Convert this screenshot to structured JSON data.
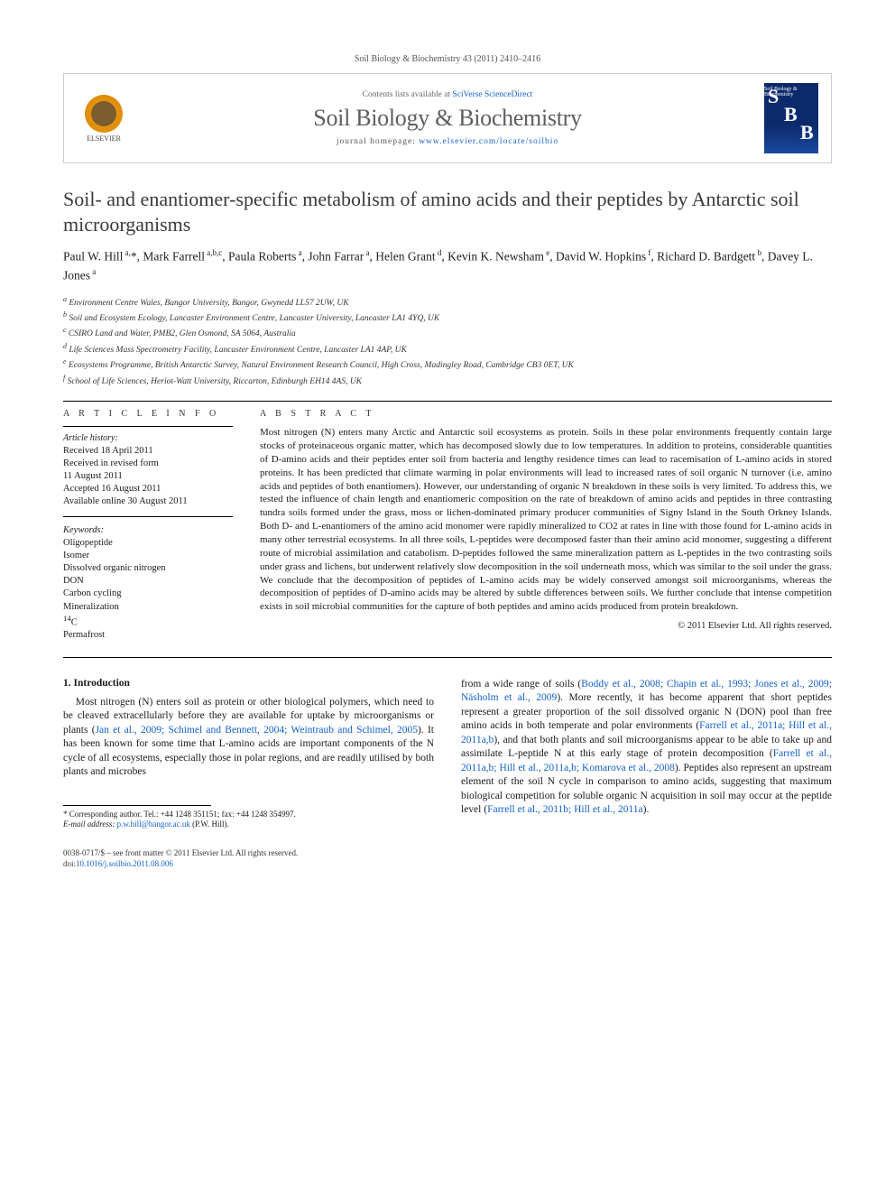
{
  "citation": "Soil Biology & Biochemistry 43 (2011) 2410–2416",
  "header": {
    "contents_prefix": "Contents lists available at ",
    "contents_link": "SciVerse ScienceDirect",
    "journal": "Soil Biology & Biochemistry",
    "homepage_prefix": "journal homepage: ",
    "homepage_url": "www.elsevier.com/locate/soilbio",
    "publisher": "ELSEVIER",
    "cover_small": "Soil Biology & Biochemistry"
  },
  "title": "Soil- and enantiomer-specific metabolism of amino acids and their peptides by Antarctic soil microorganisms",
  "authors_html": "Paul W. Hill<sup> a,</sup>*, Mark Farrell<sup> a,b,c</sup>, Paula Roberts<sup> a</sup>, John Farrar<sup> a</sup>, Helen Grant<sup> d</sup>, Kevin K. Newsham<sup> e</sup>, David W. Hopkins<sup> f</sup>, Richard D. Bardgett<sup> b</sup>, Davey L. Jones<sup> a</sup>",
  "affiliations": [
    "a Environment Centre Wales, Bangor University, Bangor, Gwynedd LL57 2UW, UK",
    "b Soil and Ecosystem Ecology, Lancaster Environment Centre, Lancaster University, Lancaster LA1 4YQ, UK",
    "c CSIRO Land and Water, PMB2, Glen Osmond, SA 5064, Australia",
    "d Life Sciences Mass Spectrometry Facility, Lancaster Environment Centre, Lancaster LA1 4AP, UK",
    "e Ecosystems Programme, British Antarctic Survey, Natural Environment Research Council, High Cross, Madingley Road, Cambridge CB3 0ET, UK",
    "f School of Life Sciences, Heriot-Watt University, Riccarton, Edinburgh EH14 4AS, UK"
  ],
  "article_info_heading": "A R T I C L E   I N F O",
  "abstract_heading": "A B S T R A C T",
  "history_label": "Article history:",
  "history": [
    "Received 18 April 2011",
    "Received in revised form",
    "11 August 2011",
    "Accepted 16 August 2011",
    "Available online 30 August 2011"
  ],
  "keywords_label": "Keywords:",
  "keywords": [
    "Oligopeptide",
    "Isomer",
    "Dissolved organic nitrogen",
    "DON",
    "Carbon cycling",
    "Mineralization",
    "14C",
    "Permafrost"
  ],
  "abstract": "Most nitrogen (N) enters many Arctic and Antarctic soil ecosystems as protein. Soils in these polar environments frequently contain large stocks of proteinaceous organic matter, which has decomposed slowly due to low temperatures. In addition to proteins, considerable quantities of D-amino acids and their peptides enter soil from bacteria and lengthy residence times can lead to racemisation of L-amino acids in stored proteins. It has been predicted that climate warming in polar environments will lead to increased rates of soil organic N turnover (i.e. amino acids and peptides of both enantiomers). However, our understanding of organic N breakdown in these soils is very limited. To address this, we tested the influence of chain length and enantiomeric composition on the rate of breakdown of amino acids and peptides in three contrasting tundra soils formed under the grass, moss or lichen-dominated primary producer communities of Signy Island in the South Orkney Islands. Both D- and L-enantiomers of the amino acid monomer were rapidly mineralized to CO2 at rates in line with those found for L-amino acids in many other terrestrial ecosystems. In all three soils, L-peptides were decomposed faster than their amino acid monomer, suggesting a different route of microbial assimilation and catabolism. D-peptides followed the same mineralization pattern as L-peptides in the two contrasting soils under grass and lichens, but underwent relatively slow decomposition in the soil underneath moss, which was similar to the soil under the grass. We conclude that the decomposition of peptides of L-amino acids may be widely conserved amongst soil microorganisms, whereas the decomposition of peptides of D-amino acids may be altered by subtle differences between soils. We further conclude that intense competition exists in soil microbial communities for the capture of both peptides and amino acids produced from protein breakdown.",
  "copyright": "© 2011 Elsevier Ltd. All rights reserved.",
  "intro_heading": "1. Introduction",
  "intro_col1": "Most nitrogen (N) enters soil as protein or other biological polymers, which need to be cleaved extracellularly before they are available for uptake by microorganisms or plants (<a href='#'>Jan et al., 2009; Schimel and Bennett, 2004; Weintraub and Schimel, 2005</a>). It has been known for some time that L-amino acids are important components of the N cycle of all ecosystems, especially those in polar regions, and are readily utilised by both plants and microbes",
  "intro_col2": "from a wide range of soils (<a href='#'>Boddy et al., 2008; Chapin et al., 1993; Jones et al., 2009; Näsholm et al., 2009</a>). More recently, it has become apparent that short peptides represent a greater proportion of the soil dissolved organic N (DON) pool than free amino acids in both temperate and polar environments (<a href='#'>Farrell et al., 2011a; Hill et al., 2011a,b</a>), and that both plants and soil microorganisms appear to be able to take up and assimilate L-peptide N at this early stage of protein decomposition (<a href='#'>Farrell et al., 2011a,b; Hill et al., 2011a,b; Komarova et al., 2008</a>). Peptides also represent an upstream element of the soil N cycle in comparison to amino acids, suggesting that maximum biological competition for soluble organic N acquisition in soil may occur at the peptide level (<a href='#'>Farrell et al., 2011b; Hill et al., 2011a</a>).",
  "footnote": {
    "corresponding": "* Corresponding author. Tel.: +44 1248 351151; fax: +44 1248 354997.",
    "email_label": "E-mail address: ",
    "email": "p.w.hill@bangor.ac.uk",
    "email_suffix": " (P.W. Hill)."
  },
  "bottom": {
    "issn": "0038-0717/$ – see front matter © 2011 Elsevier Ltd. All rights reserved.",
    "doi_label": "doi:",
    "doi": "10.1016/j.soilbio.2011.08.006"
  }
}
